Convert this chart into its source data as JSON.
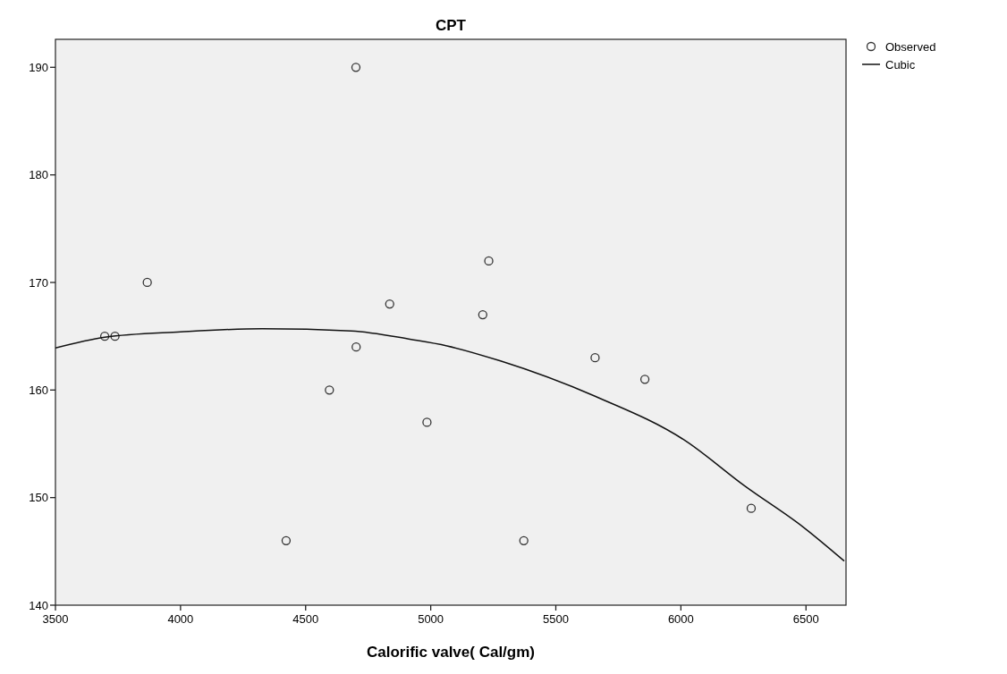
{
  "chart_data": {
    "type": "scatter",
    "title": "CPT",
    "xlabel": "Calorific valve( Cal/gm)",
    "xlim": [
      3500,
      6660
    ],
    "xticks": [
      3500,
      4000,
      4500,
      5000,
      5500,
      6000,
      6500
    ],
    "ylim": [
      140,
      192.6
    ],
    "yticks": [
      140,
      150,
      160,
      170,
      180,
      190
    ],
    "grid": false,
    "legend": "top right",
    "series": [
      {
        "name": "Observed",
        "marker": "circle",
        "color": "#333333",
        "x": [
          3697,
          3738,
          3867,
          4701,
          4702,
          4595,
          4836,
          4985,
          5208,
          5232,
          5657,
          5856,
          6281,
          5372,
          4422
        ],
        "values": [
          165,
          165,
          170,
          190,
          164,
          160,
          168,
          157,
          167,
          172,
          163,
          161,
          149,
          146,
          146
        ]
      },
      {
        "name": "Cubic",
        "type": "line",
        "marker": "none",
        "line_style": "solid",
        "color": "#111111",
        "x": [
          3500,
          3697,
          4000,
          4326,
          4683,
          4922,
          5065,
          5279,
          5659,
          6017,
          6254,
          6492,
          6653
        ],
        "values": [
          163.9,
          164.9,
          165.4,
          165.7,
          165.5,
          164.7,
          164.1,
          162.7,
          159.4,
          155.3,
          151.1,
          147.2,
          144.1
        ]
      }
    ]
  }
}
